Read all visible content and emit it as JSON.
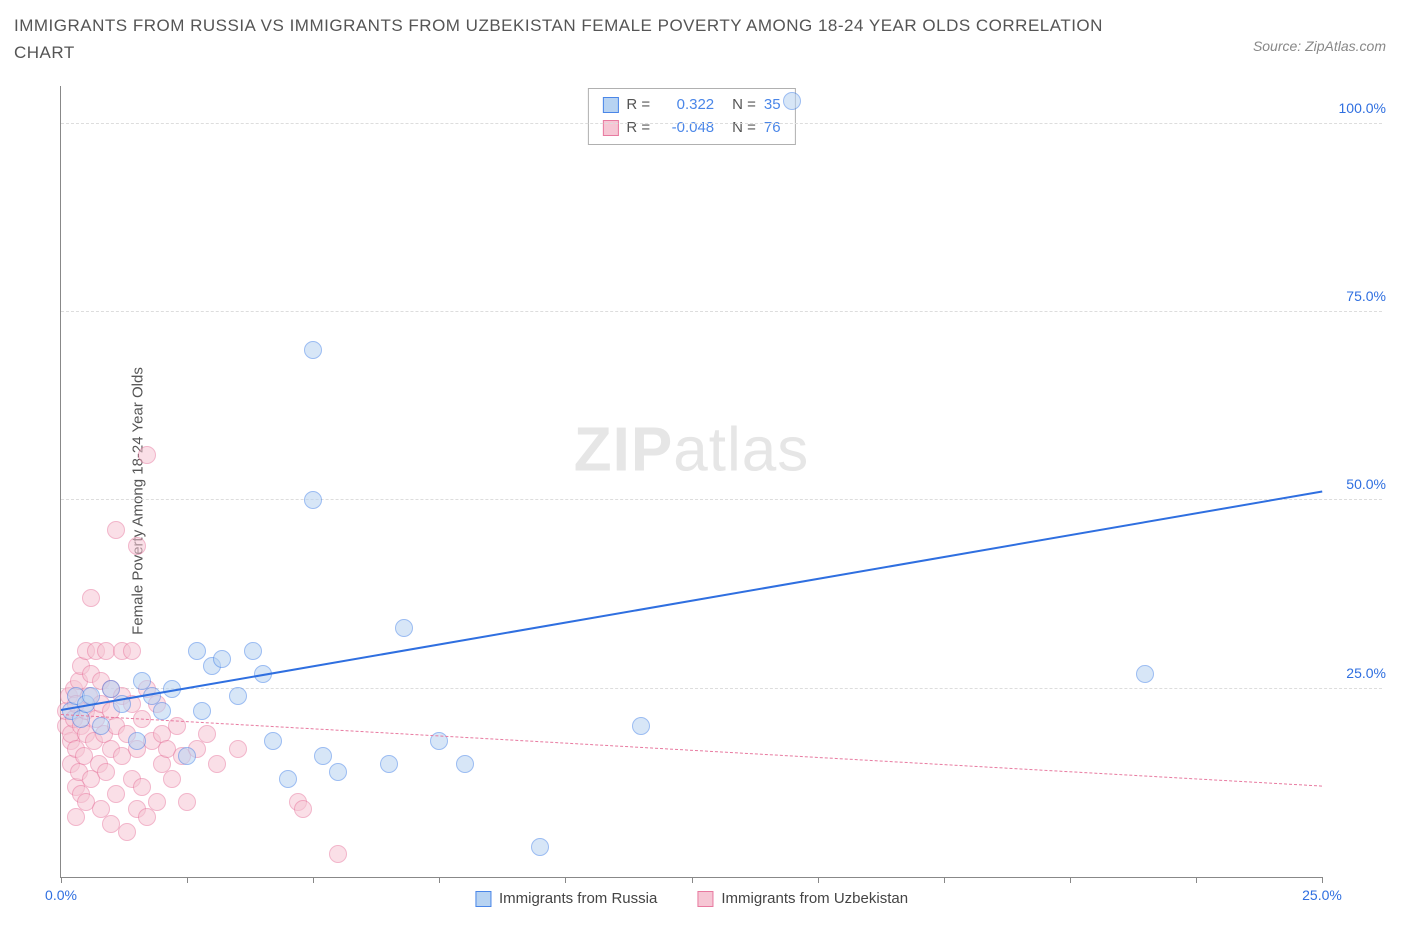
{
  "title": "IMMIGRANTS FROM RUSSIA VS IMMIGRANTS FROM UZBEKISTAN FEMALE POVERTY AMONG 18-24 YEAR OLDS CORRELATION CHART",
  "source_label": "Source: ZipAtlas.com",
  "ylabel": "Female Poverty Among 18-24 Year Olds",
  "watermark": {
    "bold": "ZIP",
    "light": "atlas"
  },
  "chart": {
    "type": "scatter",
    "background_color": "#ffffff",
    "grid_color": "#dddddd",
    "axis_color": "#888888",
    "xlim": [
      0,
      25
    ],
    "ylim": [
      0,
      105
    ],
    "xticks": [
      0,
      2.5,
      5,
      7.5,
      10,
      12.5,
      15,
      17.5,
      20,
      22.5,
      25
    ],
    "xtick_labels": {
      "0": "0.0%",
      "25": "25.0%"
    },
    "yticks": [
      25,
      50,
      75,
      100
    ],
    "ytick_labels": {
      "25": "25.0%",
      "50": "50.0%",
      "75": "75.0%",
      "100": "100.0%"
    },
    "marker_radius": 9,
    "marker_border_width": 1.5,
    "marker_opacity": 0.55
  },
  "legend_top": {
    "rows": [
      {
        "swatch_fill": "#b7d3f2",
        "swatch_border": "#4a86e8",
        "r_label": "R =",
        "r_value": "0.322",
        "n_label": "N =",
        "n_value": "35",
        "value_color": "#4a86e8"
      },
      {
        "swatch_fill": "#f6c6d4",
        "swatch_border": "#e87aa0",
        "r_label": "R =",
        "r_value": "-0.048",
        "n_label": "N =",
        "n_value": "76",
        "value_color": "#4a86e8"
      }
    ]
  },
  "legend_bottom": {
    "items": [
      {
        "swatch_fill": "#b7d3f2",
        "swatch_border": "#4a86e8",
        "label": "Immigrants from Russia"
      },
      {
        "swatch_fill": "#f6c6d4",
        "swatch_border": "#e87aa0",
        "label": "Immigrants from Uzbekistan"
      }
    ]
  },
  "series": {
    "russia": {
      "color_fill": "#b7d3f2",
      "color_border": "#4a86e8",
      "trend": {
        "x1": 0,
        "y1": 22,
        "x2": 25,
        "y2": 51,
        "width": 2.5,
        "dash": false,
        "color": "#2f6fe0"
      },
      "points": [
        [
          0.2,
          22
        ],
        [
          0.3,
          24
        ],
        [
          0.4,
          21
        ],
        [
          0.5,
          23
        ],
        [
          0.6,
          24
        ],
        [
          0.8,
          20
        ],
        [
          1.0,
          25
        ],
        [
          1.2,
          23
        ],
        [
          1.5,
          18
        ],
        [
          1.6,
          26
        ],
        [
          1.8,
          24
        ],
        [
          2.0,
          22
        ],
        [
          2.2,
          25
        ],
        [
          2.5,
          16
        ],
        [
          2.7,
          30
        ],
        [
          2.8,
          22
        ],
        [
          3.0,
          28
        ],
        [
          3.2,
          29
        ],
        [
          3.5,
          24
        ],
        [
          3.8,
          30
        ],
        [
          4.0,
          27
        ],
        [
          4.2,
          18
        ],
        [
          4.5,
          13
        ],
        [
          5.0,
          50
        ],
        [
          5.0,
          70
        ],
        [
          5.2,
          16
        ],
        [
          5.5,
          14
        ],
        [
          6.5,
          15
        ],
        [
          6.8,
          33
        ],
        [
          7.5,
          18
        ],
        [
          8.0,
          15
        ],
        [
          9.5,
          4
        ],
        [
          11.5,
          20
        ],
        [
          14.5,
          103
        ],
        [
          21.5,
          27
        ]
      ]
    },
    "uzbek": {
      "color_fill": "#f6c6d4",
      "color_border": "#e87aa0",
      "trend": {
        "x1": 0,
        "y1": 21.5,
        "x2": 25,
        "y2": 12,
        "width": 1.5,
        "dash": true,
        "color": "#e87aa0"
      },
      "points": [
        [
          0.1,
          20
        ],
        [
          0.1,
          22
        ],
        [
          0.15,
          24
        ],
        [
          0.2,
          15
        ],
        [
          0.2,
          18
        ],
        [
          0.2,
          19
        ],
        [
          0.25,
          21
        ],
        [
          0.25,
          25
        ],
        [
          0.3,
          8
        ],
        [
          0.3,
          12
        ],
        [
          0.3,
          17
        ],
        [
          0.3,
          23
        ],
        [
          0.35,
          14
        ],
        [
          0.35,
          26
        ],
        [
          0.4,
          11
        ],
        [
          0.4,
          20
        ],
        [
          0.4,
          28
        ],
        [
          0.45,
          16
        ],
        [
          0.5,
          10
        ],
        [
          0.5,
          19
        ],
        [
          0.5,
          22
        ],
        [
          0.5,
          30
        ],
        [
          0.55,
          24
        ],
        [
          0.6,
          13
        ],
        [
          0.6,
          27
        ],
        [
          0.6,
          37
        ],
        [
          0.65,
          18
        ],
        [
          0.7,
          21
        ],
        [
          0.7,
          30
        ],
        [
          0.75,
          15
        ],
        [
          0.8,
          9
        ],
        [
          0.8,
          23
        ],
        [
          0.8,
          26
        ],
        [
          0.85,
          19
        ],
        [
          0.9,
          14
        ],
        [
          0.9,
          30
        ],
        [
          1.0,
          7
        ],
        [
          1.0,
          17
        ],
        [
          1.0,
          22
        ],
        [
          1.0,
          25
        ],
        [
          1.1,
          11
        ],
        [
          1.1,
          20
        ],
        [
          1.1,
          46
        ],
        [
          1.2,
          16
        ],
        [
          1.2,
          24
        ],
        [
          1.2,
          30
        ],
        [
          1.3,
          6
        ],
        [
          1.3,
          19
        ],
        [
          1.4,
          13
        ],
        [
          1.4,
          23
        ],
        [
          1.4,
          30
        ],
        [
          1.5,
          9
        ],
        [
          1.5,
          17
        ],
        [
          1.5,
          44
        ],
        [
          1.6,
          12
        ],
        [
          1.6,
          21
        ],
        [
          1.7,
          8
        ],
        [
          1.7,
          25
        ],
        [
          1.7,
          56
        ],
        [
          1.8,
          18
        ],
        [
          1.9,
          10
        ],
        [
          1.9,
          23
        ],
        [
          2.0,
          15
        ],
        [
          2.0,
          19
        ],
        [
          2.1,
          17
        ],
        [
          2.2,
          13
        ],
        [
          2.3,
          20
        ],
        [
          2.4,
          16
        ],
        [
          2.5,
          10
        ],
        [
          2.7,
          17
        ],
        [
          2.9,
          19
        ],
        [
          3.1,
          15
        ],
        [
          3.5,
          17
        ],
        [
          4.7,
          10
        ],
        [
          4.8,
          9
        ],
        [
          5.5,
          3
        ]
      ]
    }
  },
  "xtick_label_color": "#2f6fe0",
  "ytick_label_color": "#2f6fe0"
}
